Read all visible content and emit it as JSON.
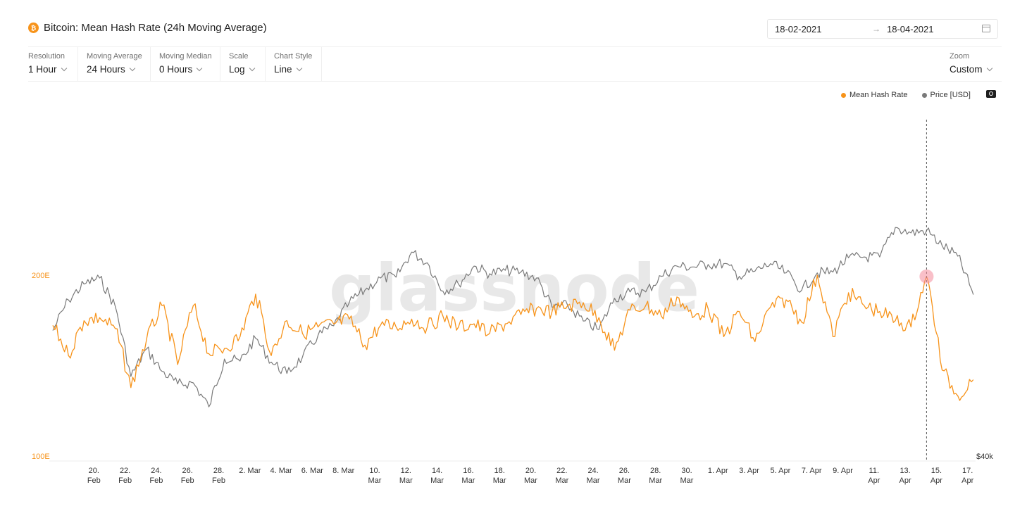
{
  "header": {
    "coin_icon": "bitcoin-icon",
    "coin_symbol": "₿",
    "title": "Bitcoin: Mean Hash Rate (24h Moving Average)",
    "date_from": "18-02-2021",
    "date_arrow": "→",
    "date_to": "18-04-2021"
  },
  "controls": [
    {
      "label": "Resolution",
      "value": "1 Hour"
    },
    {
      "label": "Moving Average",
      "value": "24 Hours"
    },
    {
      "label": "Moving Median",
      "value": "0 Hours"
    },
    {
      "label": "Scale",
      "value": "Log"
    },
    {
      "label": "Chart Style",
      "value": "Line"
    }
  ],
  "zoom": {
    "label": "Zoom",
    "value": "Custom"
  },
  "legend": [
    {
      "name": "Mean Hash Rate",
      "color": "#f7931a"
    },
    {
      "name": "Price [USD]",
      "color": "#7a7a7a"
    }
  ],
  "watermark": "glassnode",
  "chart_data": {
    "type": "line",
    "x_ticks": [
      "20. Feb",
      "22. Feb",
      "24. Feb",
      "26. Feb",
      "28. Feb",
      "2. Mar",
      "4. Mar",
      "6. Mar",
      "8. Mar",
      "10. Mar",
      "12. Mar",
      "14. Mar",
      "16. Mar",
      "18. Mar",
      "20. Mar",
      "22. Mar",
      "24. Mar",
      "26. Mar",
      "28. Mar",
      "30. Mar",
      "1. Apr",
      "3. Apr",
      "5. Apr",
      "7. Apr",
      "9. Apr",
      "11. Apr",
      "13. Apr",
      "15. Apr",
      "17. Apr"
    ],
    "y_left_ticks": [
      "200E",
      "100E"
    ],
    "y_right_ticks": [
      "$40k"
    ],
    "y_left_scale": "log",
    "hover_date": "2021-04-15",
    "series": [
      {
        "name": "Mean Hash Rate",
        "unit": "E",
        "color": "#f7931a",
        "values": [
          [
            "2021-02-18",
            165
          ],
          [
            "2021-02-19",
            147
          ],
          [
            "2021-02-20",
            168
          ],
          [
            "2021-02-21",
            170
          ],
          [
            "2021-02-22",
            163
          ],
          [
            "2021-02-23",
            130
          ],
          [
            "2021-02-24",
            156
          ],
          [
            "2021-02-25",
            178
          ],
          [
            "2021-02-26",
            142
          ],
          [
            "2021-02-27",
            178
          ],
          [
            "2021-02-28",
            148
          ],
          [
            "2021-03-01",
            151
          ],
          [
            "2021-03-02",
            158
          ],
          [
            "2021-03-03",
            186
          ],
          [
            "2021-03-04",
            147
          ],
          [
            "2021-03-05",
            168
          ],
          [
            "2021-03-06",
            160
          ],
          [
            "2021-03-07",
            164
          ],
          [
            "2021-03-08",
            166
          ],
          [
            "2021-03-09",
            169
          ],
          [
            "2021-03-10",
            153
          ],
          [
            "2021-03-11",
            165
          ],
          [
            "2021-03-12",
            164
          ],
          [
            "2021-03-13",
            169
          ],
          [
            "2021-03-14",
            164
          ],
          [
            "2021-03-15",
            171
          ],
          [
            "2021-03-16",
            164
          ],
          [
            "2021-03-17",
            166
          ],
          [
            "2021-03-18",
            160
          ],
          [
            "2021-03-19",
            166
          ],
          [
            "2021-03-20",
            172
          ],
          [
            "2021-03-21",
            176
          ],
          [
            "2021-03-22",
            174
          ],
          [
            "2021-03-23",
            178
          ],
          [
            "2021-03-24",
            180
          ],
          [
            "2021-03-25",
            170
          ],
          [
            "2021-03-26",
            150
          ],
          [
            "2021-03-27",
            175
          ],
          [
            "2021-03-28",
            178
          ],
          [
            "2021-03-29",
            171
          ],
          [
            "2021-03-30",
            184
          ],
          [
            "2021-03-31",
            170
          ],
          [
            "2021-04-01",
            176
          ],
          [
            "2021-04-02",
            158
          ],
          [
            "2021-04-03",
            174
          ],
          [
            "2021-04-04",
            155
          ],
          [
            "2021-04-05",
            177
          ],
          [
            "2021-04-06",
            182
          ],
          [
            "2021-04-07",
            167
          ],
          [
            "2021-04-08",
            200
          ],
          [
            "2021-04-09",
            158
          ],
          [
            "2021-04-10",
            187
          ],
          [
            "2021-04-11",
            178
          ],
          [
            "2021-04-12",
            174
          ],
          [
            "2021-04-13",
            168
          ],
          [
            "2021-04-14",
            164
          ],
          [
            "2021-04-15",
            199
          ],
          [
            "2021-04-16",
            139
          ],
          [
            "2021-04-17",
            126
          ],
          [
            "2021-04-18",
            134
          ]
        ]
      },
      {
        "name": "Price [USD]",
        "unit": "USD",
        "color": "#7a7a7a",
        "values": [
          [
            "2021-02-18",
            51600
          ],
          [
            "2021-02-19",
            54900
          ],
          [
            "2021-02-20",
            56700
          ],
          [
            "2021-02-21",
            57400
          ],
          [
            "2021-02-22",
            54200
          ],
          [
            "2021-02-23",
            47000
          ],
          [
            "2021-02-24",
            49700
          ],
          [
            "2021-02-25",
            47500
          ],
          [
            "2021-02-26",
            46300
          ],
          [
            "2021-02-27",
            46400
          ],
          [
            "2021-02-28",
            44200
          ],
          [
            "2021-03-01",
            48700
          ],
          [
            "2021-03-02",
            48500
          ],
          [
            "2021-03-03",
            50800
          ],
          [
            "2021-03-04",
            48400
          ],
          [
            "2021-03-05",
            47300
          ],
          [
            "2021-03-06",
            48900
          ],
          [
            "2021-03-07",
            51100
          ],
          [
            "2021-03-08",
            52100
          ],
          [
            "2021-03-09",
            54600
          ],
          [
            "2021-03-10",
            56000
          ],
          [
            "2021-03-11",
            57400
          ],
          [
            "2021-03-12",
            57500
          ],
          [
            "2021-03-13",
            60500
          ],
          [
            "2021-03-14",
            59200
          ],
          [
            "2021-03-15",
            55900
          ],
          [
            "2021-03-16",
            56700
          ],
          [
            "2021-03-17",
            58800
          ],
          [
            "2021-03-18",
            57900
          ],
          [
            "2021-03-19",
            58300
          ],
          [
            "2021-03-20",
            58100
          ],
          [
            "2021-03-21",
            57400
          ],
          [
            "2021-03-22",
            54100
          ],
          [
            "2021-03-23",
            54300
          ],
          [
            "2021-03-24",
            52600
          ],
          [
            "2021-03-25",
            51700
          ],
          [
            "2021-03-26",
            55100
          ],
          [
            "2021-03-27",
            55800
          ],
          [
            "2021-03-28",
            55800
          ],
          [
            "2021-03-29",
            57600
          ],
          [
            "2021-03-30",
            58800
          ],
          [
            "2021-03-31",
            58700
          ],
          [
            "2021-04-01",
            59000
          ],
          [
            "2021-04-02",
            59100
          ],
          [
            "2021-04-03",
            57600
          ],
          [
            "2021-04-04",
            58200
          ],
          [
            "2021-04-05",
            59100
          ],
          [
            "2021-04-06",
            58000
          ],
          [
            "2021-04-07",
            56000
          ],
          [
            "2021-04-08",
            58000
          ],
          [
            "2021-04-09",
            58100
          ],
          [
            "2021-04-10",
            59800
          ],
          [
            "2021-04-11",
            59900
          ],
          [
            "2021-04-12",
            59900
          ],
          [
            "2021-04-13",
            63600
          ],
          [
            "2021-04-14",
            62900
          ],
          [
            "2021-04-15",
            63200
          ],
          [
            "2021-04-16",
            61300
          ],
          [
            "2021-04-17",
            60000
          ],
          [
            "2021-04-18",
            55500
          ]
        ]
      }
    ]
  }
}
